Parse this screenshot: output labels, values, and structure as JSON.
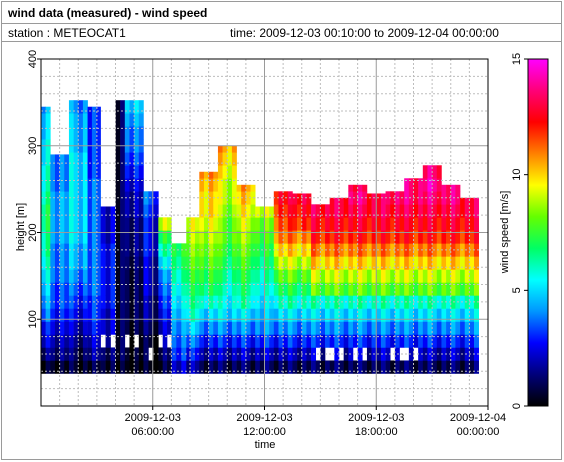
{
  "header": {
    "title": "wind data (measured) - wind speed",
    "station": "station : METEOCAT1",
    "timespan": "time: 2009-12-03 00:10:00 to 2009-12-04 00:00:00"
  },
  "chart_data": {
    "type": "heatmap",
    "title": "wind data (measured) - wind speed",
    "xlabel": "time",
    "ylabel": "height [m]",
    "colorbar_label": "wind speed [m/s]",
    "xlim": [
      "2009-12-03 00:00:00",
      "2009-12-04 00:00:00"
    ],
    "ylim": [
      0,
      400
    ],
    "y_ticks": [
      "100",
      "200",
      "300",
      "400"
    ],
    "y_tick_values": [
      100,
      200,
      300,
      400
    ],
    "x_ticks": [
      {
        "value_hours": 6,
        "line1": "2009-12-03",
        "line2": "06:00:00"
      },
      {
        "value_hours": 12,
        "line1": "2009-12-03",
        "line2": "12:00:00"
      },
      {
        "value_hours": 18,
        "line1": "2009-12-03",
        "line2": "18:00:00"
      },
      {
        "value_hours": 24,
        "line1": "2009-12-04",
        "line2": "00:00:00"
      }
    ],
    "colorbar_range": [
      0,
      15
    ],
    "colorbar_ticks": [
      "0",
      "5",
      "10",
      "15"
    ],
    "colorbar_tick_values": [
      0,
      5,
      10,
      15
    ],
    "colormap": [
      "#000000",
      "#00007a",
      "#0000ff",
      "#0096ff",
      "#00ffff",
      "#00ff64",
      "#64ff00",
      "#ffff00",
      "#ff8000",
      "#ff0000",
      "#ff0078",
      "#ff00ff"
    ],
    "grid": true,
    "height_bins_m": [
      45,
      60,
      75,
      90,
      105,
      120,
      135,
      150,
      165,
      180,
      195,
      210,
      225,
      240,
      255,
      270,
      285,
      300,
      315,
      330,
      345
    ],
    "profiles": [
      {
        "start_h": 0.0,
        "end_h": 0.5,
        "top": 345,
        "gaps": [],
        "values": [
          0.5,
          1.5,
          2.5,
          3,
          4,
          4.5,
          5,
          5.5,
          6,
          6.5,
          6.5,
          7,
          7,
          6.5,
          6,
          6,
          5.5,
          5.5,
          5,
          5,
          4.5
        ]
      },
      {
        "start_h": 0.5,
        "end_h": 1.5,
        "top": 290,
        "gaps": [],
        "values": [
          0.5,
          1.5,
          2,
          2.5,
          3,
          3.5,
          3.5,
          4,
          4,
          4,
          4.5,
          4.5,
          4.5,
          4.5,
          4,
          4,
          4,
          3.5
        ]
      },
      {
        "start_h": 1.5,
        "end_h": 2.5,
        "top": 360,
        "gaps": [],
        "values": [
          0.5,
          1,
          1.5,
          2,
          2.5,
          3,
          3.5,
          4,
          4.5,
          4.5,
          5,
          5,
          5,
          5,
          5,
          5,
          5,
          4.5,
          4.5,
          4.5,
          4
        ]
      },
      {
        "start_h": 2.5,
        "end_h": 3.2,
        "top": 345,
        "gaps": [],
        "values": [
          0.5,
          1.5,
          2,
          2.5,
          3,
          3,
          3.5,
          3.5,
          3.5,
          3.5,
          3.5,
          3.5,
          3.5,
          3.5,
          3.5,
          3,
          3,
          3,
          3,
          3,
          3
        ]
      },
      {
        "start_h": 3.2,
        "end_h": 4.0,
        "top": 230,
        "gaps": [
          2
        ],
        "values": [
          0.5,
          1,
          2,
          2,
          2,
          2.5,
          2.5,
          2.5,
          2.5,
          2.5,
          2,
          2,
          2
        ]
      },
      {
        "start_h": 4.0,
        "end_h": 4.5,
        "top": 360,
        "gaps": [],
        "values": [
          0.5,
          1,
          1,
          1,
          1,
          1,
          1,
          1,
          1,
          1,
          1,
          1,
          1,
          1,
          1,
          1,
          1,
          1,
          1,
          1,
          1
        ]
      },
      {
        "start_h": 4.5,
        "end_h": 5.5,
        "top": 360,
        "gaps": [
          2
        ],
        "values": [
          0.2,
          0.5,
          0.5,
          0.8,
          1,
          1,
          1,
          1,
          1.2,
          1.5,
          1.5,
          1.5,
          2,
          2,
          2.5,
          3,
          3.5,
          4,
          4,
          4.5,
          5
        ]
      },
      {
        "start_h": 5.5,
        "end_h": 6.3,
        "top": 250,
        "gaps": [
          1
        ],
        "values": [
          0.2,
          0.5,
          0.5,
          1,
          1.5,
          1.5,
          2,
          2,
          2,
          2.5,
          2.5,
          2.5,
          3,
          3.5
        ]
      },
      {
        "start_h": 6.3,
        "end_h": 7.0,
        "top": 225,
        "gaps": [
          2
        ],
        "values": [
          0.5,
          1,
          1.5,
          2,
          2.5,
          3,
          3.5,
          4,
          5,
          6,
          7,
          9
        ]
      },
      {
        "start_h": 7.0,
        "end_h": 7.8,
        "top": 200,
        "gaps": [],
        "values": [
          2,
          3,
          3.5,
          4,
          4.5,
          5,
          5.5,
          6,
          6.5,
          7
        ]
      },
      {
        "start_h": 7.8,
        "end_h": 8.5,
        "top": 230,
        "gaps": [],
        "values": [
          2,
          3,
          4,
          5,
          6,
          6.5,
          7,
          7.5,
          8,
          8.5,
          9,
          9.5
        ]
      },
      {
        "start_h": 8.5,
        "end_h": 9.5,
        "top": 270,
        "gaps": [],
        "values": [
          1,
          2,
          3,
          4,
          5,
          6,
          7,
          7.5,
          8,
          8.5,
          9,
          9.5,
          10,
          10,
          10.5,
          11
        ]
      },
      {
        "start_h": 9.5,
        "end_h": 10.5,
        "top": 300,
        "gaps": [],
        "values": [
          1,
          2,
          3,
          4,
          5,
          5.5,
          6,
          6.5,
          7,
          7.5,
          8,
          8,
          8.5,
          9,
          9,
          9.5,
          10,
          10.5
        ]
      },
      {
        "start_h": 10.5,
        "end_h": 11.5,
        "top": 255,
        "gaps": [],
        "values": [
          1,
          2,
          3,
          4,
          5,
          6,
          6.5,
          7,
          7.5,
          8,
          8.5,
          9,
          9.5,
          10,
          10.5
        ]
      },
      {
        "start_h": 11.5,
        "end_h": 12.5,
        "top": 230,
        "gaps": [],
        "values": [
          1,
          2,
          3,
          4,
          4.5,
          5,
          5.5,
          6,
          6.5,
          7,
          7.5,
          8,
          9
        ]
      },
      {
        "start_h": 12.5,
        "end_h": 13.5,
        "top": 250,
        "gaps": [],
        "values": [
          1,
          2,
          3,
          4,
          5,
          6,
          7,
          8,
          9,
          10,
          11,
          11.5,
          12,
          12.5
        ]
      },
      {
        "start_h": 13.5,
        "end_h": 14.5,
        "top": 245,
        "gaps": [],
        "values": [
          1,
          2,
          3,
          4,
          5,
          6,
          7,
          8,
          9,
          10,
          11,
          12,
          12.5,
          13
        ]
      },
      {
        "start_h": 14.5,
        "end_h": 15.5,
        "top": 235,
        "gaps": [
          1
        ],
        "values": [
          1,
          2,
          3,
          4,
          5,
          6,
          8,
          9,
          10,
          11,
          12,
          12.5,
          13
        ]
      },
      {
        "start_h": 15.5,
        "end_h": 16.5,
        "top": 240,
        "gaps": [
          1
        ],
        "values": [
          1,
          2,
          3,
          4,
          5,
          6,
          8,
          9,
          10,
          11,
          12,
          12.5,
          13,
          13
        ]
      },
      {
        "start_h": 16.5,
        "end_h": 17.5,
        "top": 255,
        "gaps": [
          1
        ],
        "values": [
          1,
          2,
          3,
          4,
          5,
          6,
          8,
          9,
          10,
          11,
          12,
          12.5,
          13,
          13.5,
          13
        ]
      },
      {
        "start_h": 17.5,
        "end_h": 18.5,
        "top": 245,
        "gaps": [],
        "values": [
          1,
          2,
          3,
          4,
          5,
          6,
          8,
          9,
          10,
          11,
          12,
          12.5,
          13,
          13
        ]
      },
      {
        "start_h": 18.5,
        "end_h": 19.5,
        "top": 250,
        "gaps": [
          1
        ],
        "values": [
          1,
          2,
          3,
          4,
          5,
          6,
          8,
          9,
          10,
          11,
          12,
          12.5,
          13,
          13.5
        ]
      },
      {
        "start_h": 19.5,
        "end_h": 20.5,
        "top": 265,
        "gaps": [
          1
        ],
        "values": [
          1,
          2,
          3,
          4,
          5,
          6,
          8,
          9,
          10,
          11,
          12,
          12.5,
          13,
          13.5,
          13.5
        ]
      },
      {
        "start_h": 20.5,
        "end_h": 21.5,
        "top": 280,
        "gaps": [],
        "values": [
          1,
          2,
          3,
          4,
          5,
          6,
          8,
          9,
          10,
          11,
          12,
          12.5,
          13,
          13.5,
          14,
          13.5
        ]
      },
      {
        "start_h": 21.5,
        "end_h": 22.5,
        "top": 255,
        "gaps": [],
        "values": [
          1,
          2,
          3,
          4,
          5,
          6,
          8,
          9,
          10,
          11,
          12,
          12.5,
          13,
          13.5,
          13.5
        ]
      },
      {
        "start_h": 22.5,
        "end_h": 23.5,
        "top": 240,
        "gaps": [],
        "values": [
          1,
          2,
          3,
          4,
          5,
          6,
          8,
          9,
          10,
          11,
          12,
          12.5,
          13,
          13
        ]
      }
    ]
  }
}
